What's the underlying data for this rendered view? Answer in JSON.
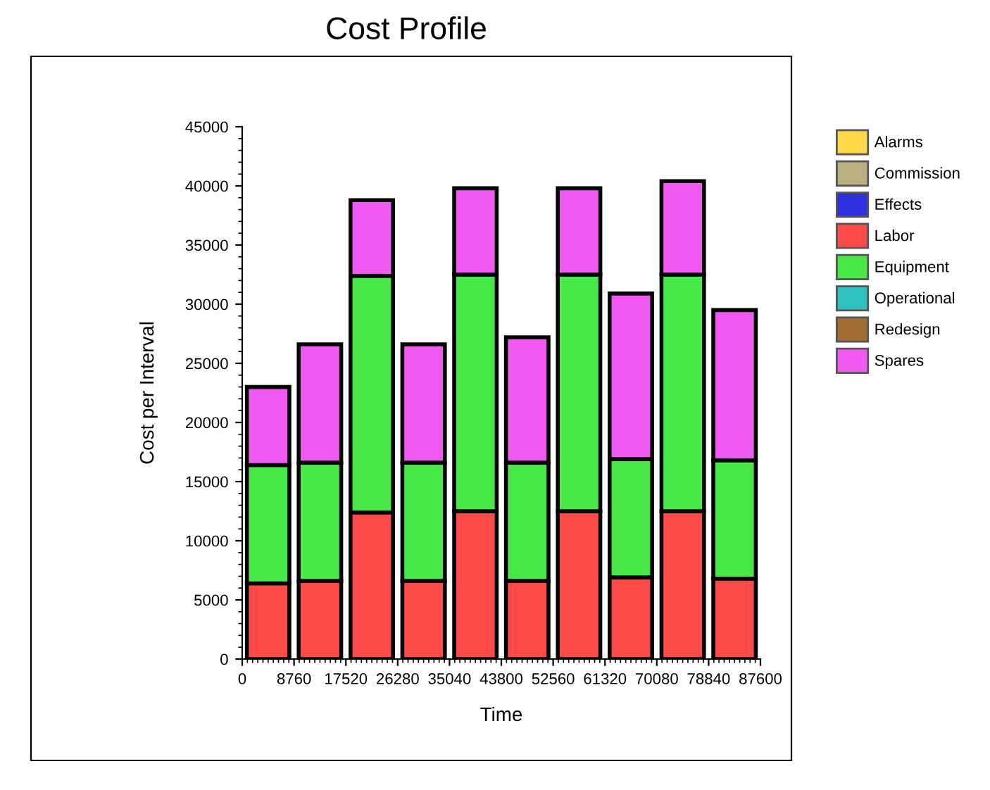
{
  "chart_data": {
    "type": "bar",
    "stacked": true,
    "title": "Cost Profile",
    "xlabel": "Time",
    "ylabel": "Cost per Interval",
    "x": [
      4380,
      13140,
      21900,
      30660,
      39420,
      48180,
      56940,
      65700,
      74460,
      83220
    ],
    "series": [
      {
        "name": "Alarms",
        "color": "#ffd84a",
        "values": [
          0,
          0,
          0,
          0,
          0,
          0,
          0,
          0,
          0,
          0
        ]
      },
      {
        "name": "Commission",
        "color": "#b8b080",
        "values": [
          0,
          0,
          0,
          0,
          0,
          0,
          0,
          0,
          0,
          0
        ]
      },
      {
        "name": "Effects",
        "color": "#3030e0",
        "values": [
          0,
          0,
          0,
          0,
          0,
          0,
          0,
          0,
          0,
          0
        ]
      },
      {
        "name": "Labor",
        "color": "#ff4a4a",
        "values": [
          6400,
          6600,
          12400,
          6600,
          12500,
          6600,
          12500,
          6900,
          12500,
          6800
        ]
      },
      {
        "name": "Equipment",
        "color": "#48e848",
        "values": [
          10000,
          10000,
          20000,
          10000,
          20000,
          10000,
          20000,
          10000,
          20000,
          10000
        ]
      },
      {
        "name": "Operational",
        "color": "#30c0c0",
        "values": [
          0,
          0,
          0,
          0,
          0,
          0,
          0,
          0,
          0,
          0
        ]
      },
      {
        "name": "Redesign",
        "color": "#a06a30",
        "values": [
          0,
          0,
          0,
          0,
          0,
          0,
          0,
          0,
          0,
          0
        ]
      },
      {
        "name": "Spares",
        "color": "#f05af0",
        "values": [
          6600,
          10000,
          6400,
          10000,
          7300,
          10600,
          7300,
          14000,
          7900,
          12700
        ]
      }
    ],
    "xlim": [
      0,
      87600
    ],
    "xticks": [
      0,
      8760,
      17520,
      26280,
      35040,
      43800,
      52560,
      61320,
      70080,
      78840,
      87600
    ],
    "ylim": [
      0,
      45000
    ],
    "yticks": [
      0,
      5000,
      10000,
      15000,
      20000,
      25000,
      30000,
      35000,
      40000,
      45000
    ],
    "grid": false,
    "legend": "right"
  }
}
